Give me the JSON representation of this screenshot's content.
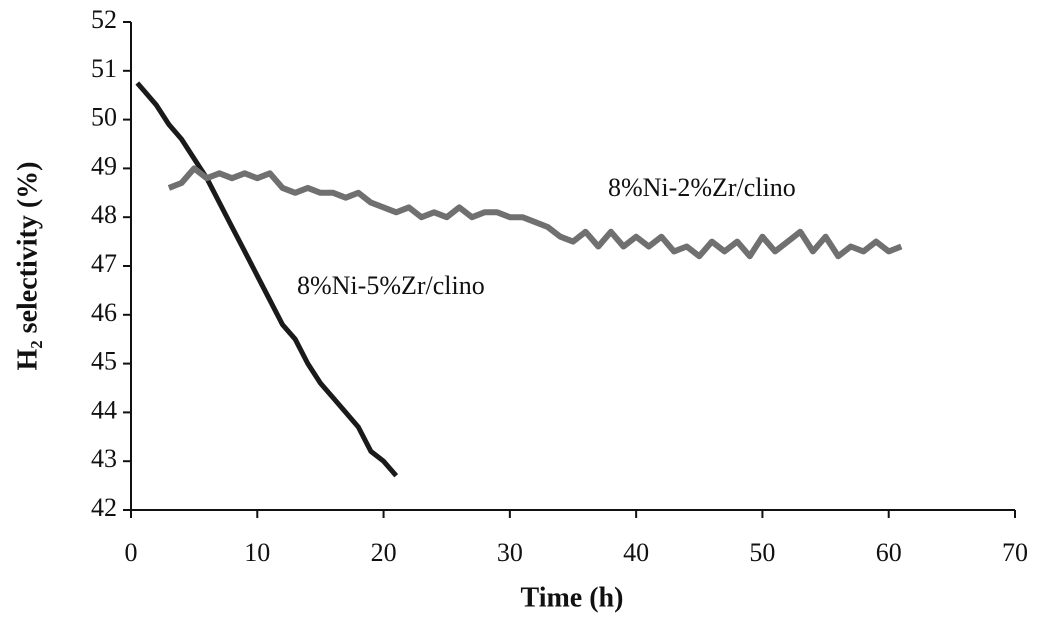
{
  "chart_data": {
    "type": "line",
    "xlabel": "Time (h)",
    "ylabel": "H₂ selectivity (%)",
    "xlim": [
      0,
      70
    ],
    "xticks": [
      0,
      10,
      20,
      30,
      40,
      50,
      60,
      70
    ],
    "ylim": [
      42,
      52
    ],
    "yticks": [
      42,
      43,
      44,
      45,
      46,
      47,
      48,
      49,
      50,
      51,
      52
    ],
    "grid": false,
    "series": [
      {
        "name": "8%Ni-5%Zr/clino",
        "color": "#1a1a1a",
        "x": [
          0.5,
          1,
          2,
          3,
          4,
          5,
          6,
          7,
          8,
          9,
          10,
          11,
          12,
          13,
          14,
          15,
          16,
          17,
          18,
          19,
          20,
          21
        ],
        "values": [
          50.75,
          50.6,
          50.3,
          49.9,
          49.6,
          49.2,
          48.8,
          48.3,
          47.8,
          47.3,
          46.8,
          46.3,
          45.8,
          45.5,
          45.0,
          44.6,
          44.3,
          44.0,
          43.7,
          43.2,
          43.0,
          42.7
        ]
      },
      {
        "name": "8%Ni-2%Zr/clino",
        "color": "#707070",
        "x": [
          3,
          4,
          5,
          6,
          7,
          8,
          9,
          10,
          11,
          12,
          13,
          14,
          15,
          16,
          17,
          18,
          19,
          20,
          21,
          22,
          23,
          24,
          25,
          26,
          27,
          28,
          29,
          30,
          31,
          32,
          33,
          34,
          35,
          36,
          37,
          38,
          39,
          40,
          41,
          42,
          43,
          44,
          45,
          46,
          47,
          48,
          49,
          50,
          51,
          52,
          53,
          54,
          55,
          56,
          57,
          58,
          59,
          60,
          61
        ],
        "values": [
          48.6,
          48.7,
          49.0,
          48.8,
          48.9,
          48.8,
          48.9,
          48.8,
          48.9,
          48.6,
          48.5,
          48.6,
          48.5,
          48.5,
          48.4,
          48.5,
          48.3,
          48.2,
          48.1,
          48.2,
          48.0,
          48.1,
          48.0,
          48.2,
          48.0,
          48.1,
          48.1,
          48.0,
          48.0,
          47.9,
          47.8,
          47.6,
          47.5,
          47.7,
          47.4,
          47.7,
          47.4,
          47.6,
          47.4,
          47.6,
          47.3,
          47.4,
          47.2,
          47.5,
          47.3,
          47.5,
          47.2,
          47.6,
          47.3,
          47.5,
          47.7,
          47.3,
          47.6,
          47.2,
          47.4,
          47.3,
          47.5,
          47.3,
          47.4
        ]
      }
    ]
  }
}
